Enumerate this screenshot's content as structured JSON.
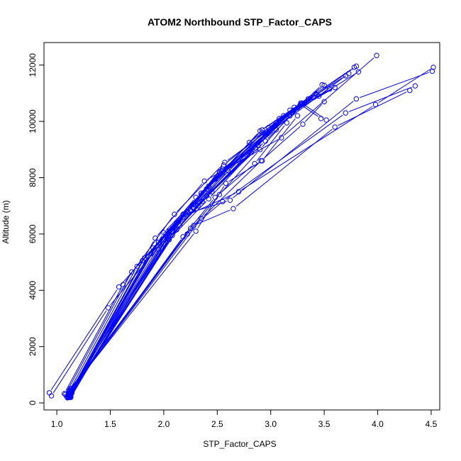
{
  "chart_data": {
    "type": "scatter",
    "title": "ATOM2 Northbound STP_Factor_CAPS",
    "xlabel": "STP_Factor_CAPS",
    "ylabel": "Altitude (m)",
    "xlim": [
      0.88,
      4.58
    ],
    "ylim": [
      -250,
      12800
    ],
    "xticks": [
      1.0,
      1.5,
      2.0,
      2.5,
      3.0,
      3.5,
      4.0,
      4.5
    ],
    "xtick_labels": [
      "1.0",
      "1.5",
      "2.0",
      "2.5",
      "3.0",
      "3.5",
      "4.0",
      "4.5"
    ],
    "yticks": [
      0,
      2000,
      4000,
      6000,
      8000,
      10000,
      12000
    ],
    "ytick_labels": [
      "0",
      "2000",
      "4000",
      "6000",
      "8000",
      "10000",
      "12000"
    ],
    "grid": false,
    "legend": "none",
    "color": "#0000ff",
    "marker": "open-circle",
    "series": [
      {
        "x": [
          0.93,
          1.58,
          2.18,
          2.9,
          3.78
        ],
        "y": [
          360,
          4120,
          6700,
          9660,
          11920
        ]
      },
      {
        "x": [
          0.95,
          1.48,
          2.05,
          2.55,
          3.05
        ],
        "y": [
          250,
          3380,
          6000,
          8220,
          9700
        ]
      },
      {
        "x": [
          1.07,
          1.62,
          2.1,
          2.57,
          3.43
        ],
        "y": [
          330,
          4200,
          6700,
          8540,
          10950
        ]
      },
      {
        "x": [
          1.08,
          1.7,
          2.27,
          2.92,
          3.8
        ],
        "y": [
          300,
          4650,
          6950,
          9600,
          11960
        ]
      },
      {
        "x": [
          1.09,
          1.75,
          2.22,
          2.8,
          3.5
        ],
        "y": [
          240,
          4850,
          6800,
          9250,
          11280
        ]
      },
      {
        "x": [
          1.1,
          1.8,
          2.3,
          2.98,
          3.82
        ],
        "y": [
          200,
          5050,
          7300,
          9780,
          11760
        ]
      },
      {
        "x": [
          1.1,
          1.85,
          2.35,
          2.92,
          3.7
        ],
        "y": [
          180,
          5200,
          7450,
          9700,
          11620
        ]
      },
      {
        "x": [
          1.11,
          1.9,
          2.4,
          2.95,
          3.73
        ],
        "y": [
          210,
          5500,
          7600,
          9500,
          11700
        ]
      },
      {
        "x": [
          1.11,
          1.92,
          2.38,
          3.1,
          3.99
        ],
        "y": [
          260,
          5850,
          7880,
          9420,
          12340
        ]
      },
      {
        "x": [
          1.12,
          1.95,
          2.42,
          3.2,
          3.6
        ],
        "y": [
          220,
          5700,
          7700,
          10330,
          11200
        ]
      },
      {
        "x": [
          1.12,
          2.0,
          2.48,
          3.22,
          3.55
        ],
        "y": [
          320,
          6050,
          7950,
          10400,
          11150
        ]
      },
      {
        "x": [
          1.12,
          2.02,
          2.5,
          3.25,
          3.48
        ],
        "y": [
          280,
          6000,
          8050,
          10480,
          11300
        ]
      },
      {
        "x": [
          1.13,
          2.05,
          2.55,
          3.27,
          3.42
        ],
        "y": [
          190,
          6100,
          8300,
          10550,
          10980
        ]
      },
      {
        "x": [
          1.13,
          2.08,
          2.54,
          3.28,
          3.47
        ],
        "y": [
          230,
          6200,
          8250,
          10600,
          10100
        ]
      },
      {
        "x": [
          1.13,
          2.1,
          2.56,
          3.29,
          3.52
        ],
        "y": [
          300,
          6250,
          8450,
          10650,
          10050
        ]
      },
      {
        "x": [
          1.14,
          2.12,
          2.52,
          3.3,
          3.45
        ],
        "y": [
          350,
          6400,
          8200,
          10620,
          10900
        ]
      },
      {
        "x": [
          1.14,
          2.15,
          2.6,
          3.18,
          3.4
        ],
        "y": [
          380,
          6300,
          8250,
          10200,
          10850
        ]
      },
      {
        "x": [
          1.12,
          2.18,
          2.7,
          3.98,
          4.52
        ],
        "y": [
          420,
          6600,
          7500,
          10600,
          11920
        ]
      },
      {
        "x": [
          1.13,
          2.2,
          2.62,
          3.8,
          4.51
        ],
        "y": [
          480,
          6700,
          7200,
          10800,
          11780
        ]
      },
      {
        "x": [
          1.12,
          2.25,
          2.55,
          3.7,
          4.35
        ],
        "y": [
          450,
          6200,
          7150,
          10300,
          11260
        ]
      },
      {
        "x": [
          1.13,
          2.28,
          2.65,
          3.6,
          4.3
        ],
        "y": [
          520,
          6300,
          6900,
          9800,
          11100
        ]
      },
      {
        "x": [
          1.12,
          2.35,
          2.91,
          3.3,
          3.5
        ],
        "y": [
          400,
          6550,
          8600,
          9900,
          10700
        ]
      },
      {
        "x": [
          1.11,
          2.3,
          2.58,
          2.92,
          3.25
        ],
        "y": [
          380,
          6100,
          7800,
          8600,
          10200
        ]
      },
      {
        "x": [
          1.12,
          2.18,
          2.48,
          2.85,
          3.15
        ],
        "y": [
          350,
          5900,
          7300,
          8500,
          9950
        ]
      },
      {
        "x": [
          1.11,
          2.22,
          2.52,
          2.9,
          3.2
        ],
        "y": [
          330,
          6000,
          7400,
          9000,
          10300
        ]
      },
      {
        "x": [
          1.13,
          2.12,
          2.45,
          2.95,
          3.35
        ],
        "y": [
          260,
          6150,
          7500,
          9300,
          10800
        ]
      },
      {
        "x": [
          1.12,
          2.08,
          2.4,
          2.88,
          3.28
        ],
        "y": [
          240,
          5950,
          7350,
          9150,
          10650
        ]
      },
      {
        "x": [
          1.11,
          2.05,
          2.42,
          2.86,
          3.22
        ],
        "y": [
          210,
          5800,
          7250,
          9050,
          10500
        ]
      },
      {
        "x": [
          1.12,
          2.0,
          2.36,
          2.82,
          3.18
        ],
        "y": [
          200,
          5650,
          7150,
          8900,
          10400
        ]
      },
      {
        "x": [
          1.1,
          1.95,
          2.32,
          2.78,
          3.12
        ],
        "y": [
          190,
          5450,
          7000,
          8800,
          10200
        ]
      },
      {
        "x": [
          1.11,
          1.88,
          2.28,
          2.75,
          3.08
        ],
        "y": [
          230,
          5300,
          6900,
          8700,
          10100
        ]
      },
      {
        "x": [
          1.12,
          1.82,
          2.25,
          2.7,
          3.05
        ],
        "y": [
          250,
          5150,
          6850,
          8600,
          9950
        ]
      }
    ]
  }
}
